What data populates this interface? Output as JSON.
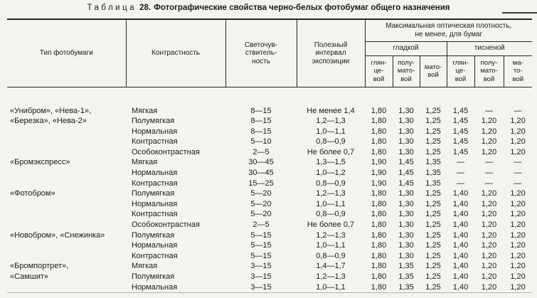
{
  "colors": {
    "paper": "#f4f3ed",
    "ink": "#1a1a1a",
    "line": "#242424"
  },
  "title": {
    "word": "Таблица",
    "number": "28.",
    "text": "Фотографические свойства черно-белых фотобумаг общего назначения"
  },
  "table": {
    "headers": {
      "paper_type": "Тип фотобумаги",
      "contrast": "Контрастность",
      "sensitivity": "Светочув-\nствитель-\nность",
      "exposure_interval": "Полезный\nинтервал\nэкспозиции",
      "max_density_group": "Максимальная оптическая плотность,\nне менее, для бумаг",
      "smooth_group": "гладкой",
      "embossed_group": "тисненой",
      "sub_columns": [
        "глян-\nце-\nвой",
        "полу-\nмато-\nвой",
        "мато-\nвой",
        "глян-\nце-\nвой",
        "полу-\nмато-\nвой",
        "ма-\nто-\nвой"
      ]
    },
    "rows": [
      {
        "type": "«Унибром», «Нева-1»,",
        "contrast": "Мягкая",
        "sensitivity": "8—15",
        "interval": "Не менее 1,4",
        "density": [
          "1,80",
          "1,30",
          "1,25",
          "1,45",
          "—",
          "—"
        ]
      },
      {
        "type": "«Березка», «Нева-2»",
        "contrast": "Полумягкая",
        "sensitivity": "8—15",
        "interval": "1,2—1,3",
        "density": [
          "1,80",
          "1,30",
          "1,25",
          "1,45",
          "1,20",
          "1,20"
        ]
      },
      {
        "type": "",
        "contrast": "Нормальная",
        "sensitivity": "8—15",
        "interval": "1,0—1,1",
        "density": [
          "1,80",
          "1,30",
          "1,25",
          "1,45",
          "1,20",
          "1,20"
        ]
      },
      {
        "type": "",
        "contrast": "Контрастная",
        "sensitivity": "5—10",
        "interval": "0,8—0,9",
        "density": [
          "1,80",
          "1,30",
          "1,25",
          "1,45",
          "1,20",
          "1,20"
        ]
      },
      {
        "type": "",
        "contrast": "Особоконтрастная",
        "sensitivity": "2—5",
        "interval": "Не более 0,7",
        "density": [
          "1,80",
          "1,30",
          "1,25",
          "1,45",
          "1,20",
          "1,20"
        ]
      },
      {
        "type": "«Бромэкспресс»",
        "contrast": "Мягкая",
        "sensitivity": "30—45",
        "interval": "1,3—1,5",
        "density": [
          "1,90",
          "1,45",
          "1,35",
          "—",
          "—",
          "—"
        ]
      },
      {
        "type": "",
        "contrast": "Нормальная",
        "sensitivity": "30—45",
        "interval": "1,0—1,2",
        "density": [
          "1,90",
          "1,45",
          "1,35",
          "—",
          "—",
          "—"
        ]
      },
      {
        "type": "",
        "contrast": "Контрастная",
        "sensitivity": "15—25",
        "interval": "0,8—0,9",
        "density": [
          "1,90",
          "1,45",
          "1,35",
          "—",
          "—",
          "—"
        ]
      },
      {
        "type": "«Фотобром»",
        "contrast": "Полумягкая",
        "sensitivity": "5—20",
        "interval": "1,2—1,3",
        "density": [
          "1,80",
          "1,30",
          "1,25",
          "1,40",
          "1,20",
          "1,20"
        ]
      },
      {
        "type": "",
        "contrast": "Нормальная",
        "sensitivity": "5—20",
        "interval": "1,0—1,1",
        "density": [
          "1,80",
          "1,30",
          "1,25",
          "1,40",
          "1,20",
          "1,20"
        ]
      },
      {
        "type": "",
        "contrast": "Контрастная",
        "sensitivity": "5—20",
        "interval": "0,8—0,9",
        "density": [
          "1,80",
          "1,30",
          "1,25",
          "1,40",
          "1,20",
          "1,20"
        ]
      },
      {
        "type": "",
        "contrast": "Особоконтрастная",
        "sensitivity": "2—5",
        "interval": "Не более 0,7",
        "density": [
          "1,80",
          "1,30",
          "1,25",
          "1,40",
          "1,20",
          "1,20"
        ]
      },
      {
        "type": "«Новобром», «Снежинка»",
        "contrast": "Полумягкая",
        "sensitivity": "5—15",
        "interval": "1,2—1,3",
        "density": [
          "1,80",
          "1,30",
          "1,25",
          "1,40",
          "1,20",
          "1,20"
        ]
      },
      {
        "type": "",
        "contrast": "Нормальная",
        "sensitivity": "5—15",
        "interval": "1,0—1,1",
        "density": [
          "1,80",
          "1,30",
          "1,25",
          "1,40",
          "1,20",
          "1,20"
        ]
      },
      {
        "type": "",
        "contrast": "Контрастная",
        "sensitivity": "5—15",
        "interval": "0,8—0,9",
        "density": [
          "1,80",
          "1,30",
          "1,25",
          "1,40",
          "1,20",
          "1,20"
        ]
      },
      {
        "type": "«Бромпортрет»,",
        "contrast": "Мягкая",
        "sensitivity": "3—15",
        "interval": "1,4—1,7",
        "density": [
          "1,80",
          "1,35",
          "1,25",
          "1,40",
          "1,20",
          "1,20"
        ]
      },
      {
        "type": "«Самшит»",
        "contrast": "Полумягкая",
        "sensitivity": "3—15",
        "interval": "1,2—1,3",
        "density": [
          "1,80",
          "1,35",
          "1,25",
          "1,40",
          "1,20",
          "1,20"
        ]
      },
      {
        "type": "",
        "contrast": "Нормальная",
        "sensitivity": "3—15",
        "interval": "1,0—1,1",
        "density": [
          "1,80",
          "1,35",
          "1,25",
          "1,40",
          "1,20",
          "1,20"
        ]
      }
    ]
  }
}
